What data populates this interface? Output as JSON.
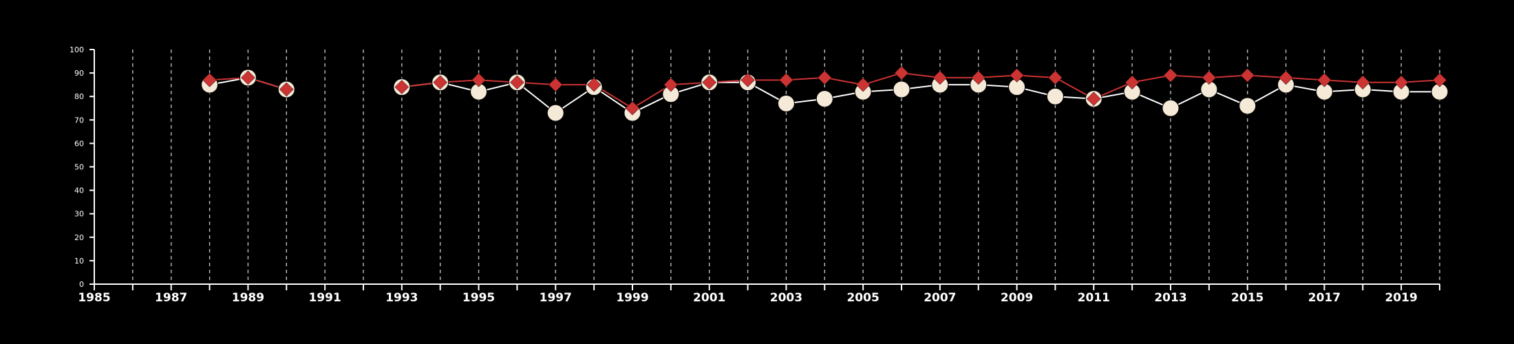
{
  "chart_data": {
    "type": "line",
    "title": "",
    "xlabel": "",
    "ylabel": "",
    "xlim": [
      1985,
      2020
    ],
    "ylim": [
      0,
      100
    ],
    "y_ticks": [
      0,
      10,
      20,
      30,
      40,
      50,
      60,
      70,
      80,
      90,
      100
    ],
    "x_tick_labels": [
      "1985",
      "1987",
      "1989",
      "1991",
      "1993",
      "1995",
      "1997",
      "1999",
      "2001",
      "2003",
      "2005",
      "2007",
      "2009",
      "2011",
      "2013",
      "2015",
      "2017",
      "2019"
    ],
    "x_ticks_every_year": true,
    "vertical_gridlines": "dashed at every year",
    "background_color": "#000000",
    "series": [
      {
        "marker": "circle",
        "color": "#f5e9d7",
        "line_color": "#ffffff",
        "x": [
          1988,
          1989,
          1990,
          1993,
          1994,
          1995,
          1996,
          1997,
          1998,
          1999,
          2000,
          2001,
          2002,
          2003,
          2004,
          2005,
          2006,
          2007,
          2008,
          2009,
          2010,
          2011,
          2012,
          2013,
          2014,
          2015,
          2016,
          2017,
          2018,
          2019,
          2020
        ],
        "values": [
          85,
          88,
          83,
          84,
          86,
          82,
          86,
          73,
          84,
          73,
          81,
          86,
          86,
          77,
          79,
          82,
          83,
          85,
          85,
          84,
          80,
          79,
          82,
          75,
          83,
          76,
          85,
          82,
          83,
          82,
          82
        ]
      },
      {
        "marker": "diamond",
        "color": "#cc3333",
        "line_color": "#cc3333",
        "x": [
          1988,
          1989,
          1990,
          1993,
          1994,
          1995,
          1996,
          1997,
          1998,
          1999,
          2000,
          2001,
          2002,
          2003,
          2004,
          2005,
          2006,
          2007,
          2008,
          2009,
          2010,
          2011,
          2012,
          2013,
          2014,
          2015,
          2016,
          2017,
          2018,
          2019,
          2020
        ],
        "values": [
          87,
          88,
          83,
          84,
          86,
          87,
          86,
          85,
          85,
          75,
          85,
          86,
          87,
          87,
          88,
          85,
          90,
          88,
          88,
          89,
          88,
          79,
          86,
          89,
          88,
          89,
          88,
          87,
          86,
          86,
          87
        ]
      }
    ]
  }
}
